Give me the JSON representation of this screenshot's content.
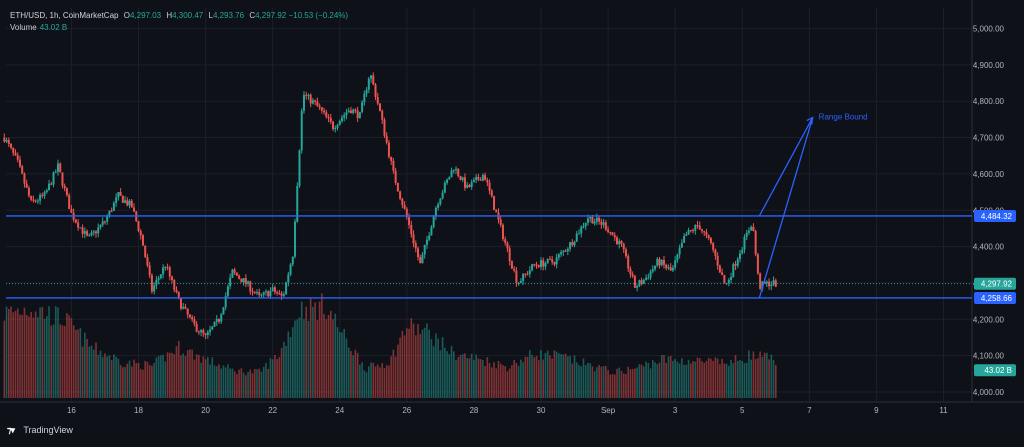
{
  "header": {
    "symbol": "ETH/USD, 1h, CoinMarketCap",
    "open_label": "O",
    "open": "4,297.03",
    "high_label": "H",
    "high": "4,300.47",
    "low_label": "L",
    "low": "4,293.76",
    "close_label": "C",
    "close": "4,297.92",
    "change": "−10.53 (−0.24%)"
  },
  "volume": {
    "label": "Volume",
    "value": "43.02 B"
  },
  "branding": {
    "logo_icon": "tradingview-logo-icon",
    "name": "TradingView"
  },
  "colors": {
    "background": "#0f1118",
    "grid": "#1c1f29",
    "up": "#26a69a",
    "down": "#ef5350",
    "line": "#2962ff",
    "axis_text": "#b2b5be"
  },
  "chart_data": {
    "type": "candlestick",
    "title": "",
    "ylim": [
      3960,
      5060
    ],
    "y_ticks": [
      "4,000.00",
      "4,100.00",
      "4,200.00",
      "4,300.00",
      "4,400.00",
      "4,500.00",
      "4,600.00",
      "4,700.00",
      "4,800.00",
      "4,900.00",
      "5,000.00"
    ],
    "y_tick_values": [
      4000,
      4100,
      4200,
      4300,
      4400,
      4500,
      4600,
      4700,
      4800,
      4900,
      5000
    ],
    "x_ticks": [
      "16",
      "18",
      "20",
      "22",
      "24",
      "26",
      "28",
      "30",
      "Sep",
      "3",
      "5",
      "7",
      "9",
      "11"
    ],
    "x_tick_days": [
      2,
      4,
      6,
      8,
      10,
      12,
      14,
      16,
      18,
      20,
      22,
      24,
      26,
      28
    ],
    "x_range_days": [
      0.05,
      28.85
    ],
    "price_path": [
      {
        "day": 0,
        "price": 4700
      },
      {
        "day": 0.4,
        "price": 4630
      },
      {
        "day": 0.8,
        "price": 4520
      },
      {
        "day": 1.2,
        "price": 4540
      },
      {
        "day": 1.6,
        "price": 4620
      },
      {
        "day": 2.0,
        "price": 4490
      },
      {
        "day": 2.5,
        "price": 4420
      },
      {
        "day": 3.0,
        "price": 4470
      },
      {
        "day": 3.4,
        "price": 4540
      },
      {
        "day": 3.8,
        "price": 4510
      },
      {
        "day": 4.1,
        "price": 4420
      },
      {
        "day": 4.4,
        "price": 4280
      },
      {
        "day": 4.8,
        "price": 4350
      },
      {
        "day": 5.2,
        "price": 4250
      },
      {
        "day": 5.6,
        "price": 4190
      },
      {
        "day": 6.0,
        "price": 4150
      },
      {
        "day": 6.4,
        "price": 4200
      },
      {
        "day": 6.8,
        "price": 4330
      },
      {
        "day": 7.2,
        "price": 4300
      },
      {
        "day": 7.6,
        "price": 4260
      },
      {
        "day": 8.0,
        "price": 4280
      },
      {
        "day": 8.3,
        "price": 4260
      },
      {
        "day": 8.6,
        "price": 4380
      },
      {
        "day": 8.9,
        "price": 4820
      },
      {
        "day": 9.3,
        "price": 4790
      },
      {
        "day": 9.8,
        "price": 4730
      },
      {
        "day": 10.3,
        "price": 4780
      },
      {
        "day": 10.6,
        "price": 4760
      },
      {
        "day": 10.9,
        "price": 4880
      },
      {
        "day": 11.2,
        "price": 4770
      },
      {
        "day": 11.6,
        "price": 4600
      },
      {
        "day": 12.0,
        "price": 4480
      },
      {
        "day": 12.4,
        "price": 4350
      },
      {
        "day": 12.9,
        "price": 4520
      },
      {
        "day": 13.4,
        "price": 4620
      },
      {
        "day": 13.8,
        "price": 4560
      },
      {
        "day": 14.3,
        "price": 4600
      },
      {
        "day": 14.8,
        "price": 4450
      },
      {
        "day": 15.3,
        "price": 4300
      },
      {
        "day": 15.8,
        "price": 4350
      },
      {
        "day": 16.4,
        "price": 4360
      },
      {
        "day": 16.9,
        "price": 4410
      },
      {
        "day": 17.4,
        "price": 4480
      },
      {
        "day": 17.9,
        "price": 4460
      },
      {
        "day": 18.4,
        "price": 4400
      },
      {
        "day": 18.8,
        "price": 4290
      },
      {
        "day": 19.1,
        "price": 4310
      },
      {
        "day": 19.5,
        "price": 4360
      },
      {
        "day": 19.9,
        "price": 4330
      },
      {
        "day": 20.3,
        "price": 4430
      },
      {
        "day": 20.7,
        "price": 4460
      },
      {
        "day": 21.1,
        "price": 4400
      },
      {
        "day": 21.5,
        "price": 4290
      },
      {
        "day": 21.9,
        "price": 4380
      },
      {
        "day": 22.3,
        "price": 4470
      },
      {
        "day": 22.5,
        "price": 4290
      },
      {
        "day": 22.8,
        "price": 4300
      },
      {
        "day": 23.0,
        "price": 4298
      }
    ],
    "volume_profile": [
      {
        "day": 0,
        "v": 0.92
      },
      {
        "day": 0.8,
        "v": 0.98
      },
      {
        "day": 1.8,
        "v": 0.85
      },
      {
        "day": 2.6,
        "v": 0.55
      },
      {
        "day": 3.6,
        "v": 0.38
      },
      {
        "day": 4.4,
        "v": 0.35
      },
      {
        "day": 5.2,
        "v": 0.55
      },
      {
        "day": 6.0,
        "v": 0.42
      },
      {
        "day": 6.8,
        "v": 0.3
      },
      {
        "day": 7.6,
        "v": 0.28
      },
      {
        "day": 8.2,
        "v": 0.48
      },
      {
        "day": 8.8,
        "v": 0.96
      },
      {
        "day": 9.6,
        "v": 1.0
      },
      {
        "day": 10.2,
        "v": 0.62
      },
      {
        "day": 10.8,
        "v": 0.32
      },
      {
        "day": 11.5,
        "v": 0.4
      },
      {
        "day": 12.0,
        "v": 0.78
      },
      {
        "day": 12.6,
        "v": 0.72
      },
      {
        "day": 13.4,
        "v": 0.48
      },
      {
        "day": 14.2,
        "v": 0.42
      },
      {
        "day": 15.0,
        "v": 0.34
      },
      {
        "day": 15.8,
        "v": 0.48
      },
      {
        "day": 16.6,
        "v": 0.45
      },
      {
        "day": 17.4,
        "v": 0.36
      },
      {
        "day": 18.2,
        "v": 0.28
      },
      {
        "day": 18.8,
        "v": 0.32
      },
      {
        "day": 19.6,
        "v": 0.42
      },
      {
        "day": 20.6,
        "v": 0.4
      },
      {
        "day": 21.6,
        "v": 0.38
      },
      {
        "day": 22.2,
        "v": 0.46
      },
      {
        "day": 23.0,
        "v": 0.42
      }
    ],
    "horizontal_levels": [
      {
        "value": 4484.32,
        "label": "4,484.32",
        "style": "line"
      },
      {
        "value": 4258.66,
        "label": "4,258.66",
        "style": "line"
      }
    ],
    "price_labels": [
      {
        "value": 4297.92,
        "label": "4,297.92",
        "color": "#26a69a"
      },
      {
        "value": 4060,
        "label": "43.02 B",
        "color": "#26a69a"
      }
    ],
    "annotation": {
      "text": "Range Bound",
      "tip": {
        "day": 24.1,
        "price": 4755
      },
      "points": [
        {
          "day": 22.45,
          "price": 4484.32
        },
        {
          "day": 22.45,
          "price": 4258.66
        }
      ]
    }
  }
}
